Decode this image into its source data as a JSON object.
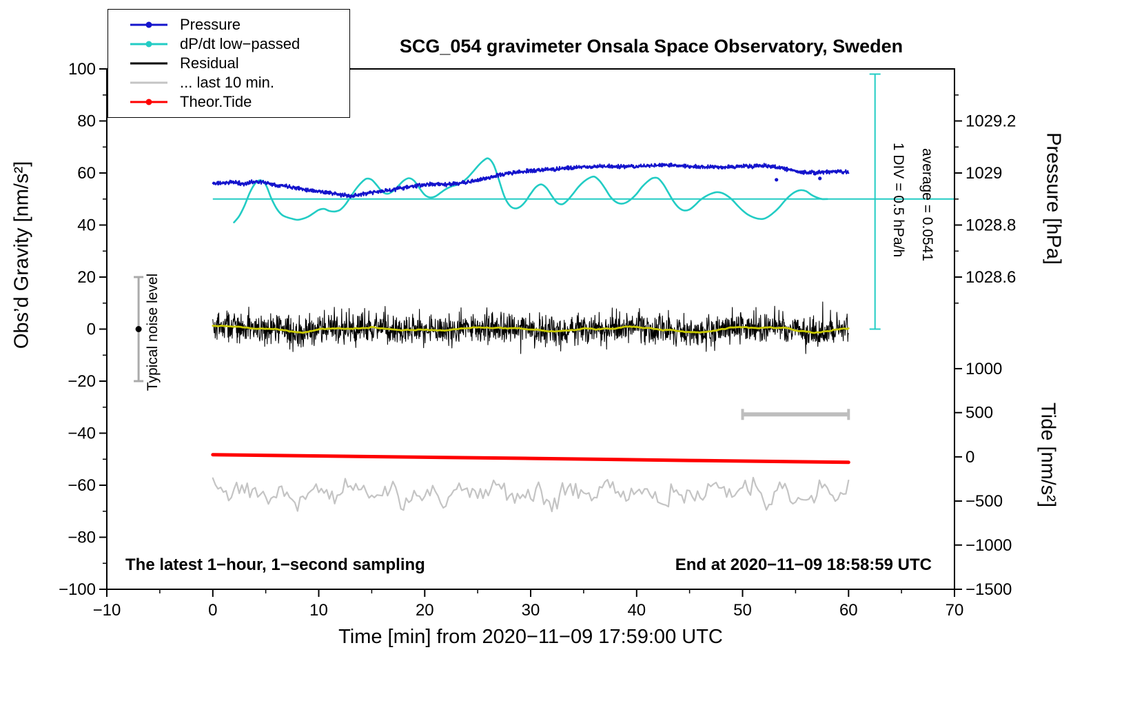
{
  "chart_data": {
    "type": "line",
    "title": "SCG_054 gravimeter Onsala Space Observatory, Sweden",
    "xlabel": "Time [min] from 2020−11−09 17:59:00 UTC",
    "x_range": [
      -10,
      70
    ],
    "x_ticks": [
      {
        "label": "−10",
        "value": -10
      },
      {
        "label": "0",
        "value": 0
      },
      {
        "label": "10",
        "value": 10
      },
      {
        "label": "20",
        "value": 20
      },
      {
        "label": "30",
        "value": 30
      },
      {
        "label": "40",
        "value": 40
      },
      {
        "label": "50",
        "value": 50
      },
      {
        "label": "60",
        "value": 60
      },
      {
        "label": "70",
        "value": 70
      }
    ],
    "x_minor_ticks": [
      -5,
      5,
      15,
      25,
      35,
      45,
      55,
      65
    ],
    "gravity_axis": {
      "label": "Obs’d Gravity [nm/s²]",
      "range": [
        -100,
        100
      ],
      "ticks": [
        {
          "label": "100",
          "value": 100
        },
        {
          "label": "80",
          "value": 80
        },
        {
          "label": "60",
          "value": 60
        },
        {
          "label": "40",
          "value": 40
        },
        {
          "label": "20",
          "value": 20
        },
        {
          "label": "0",
          "value": 0
        },
        {
          "label": "−20",
          "value": -20
        },
        {
          "label": "−40",
          "value": -40
        },
        {
          "label": "−60",
          "value": -60
        },
        {
          "label": "−80",
          "value": -80
        },
        {
          "label": "−100",
          "value": -100
        }
      ],
      "minor_ticks": [
        90,
        70,
        50,
        30,
        10,
        -10,
        -30,
        -50,
        -70,
        -90
      ]
    },
    "pressure_axis": {
      "label": "Pressure [hPa]",
      "hpa_at_gravity_zero": 1028.4,
      "hpa_per_gravity_unit": 0.01,
      "ticks": [
        {
          "label": "1029.2",
          "gravity": 80
        },
        {
          "label": "1029",
          "gravity": 60
        },
        {
          "label": "1028.8",
          "gravity": 40
        },
        {
          "label": "1028.6",
          "gravity": 20
        }
      ],
      "minor_ticks_gravity": [
        90,
        70,
        50,
        30,
        10
      ]
    },
    "tide_axis": {
      "label": "Tide [nm/s²]",
      "ticks": [
        {
          "label": "1000",
          "gravity": -15.2
        },
        {
          "label": "500",
          "gravity": -32.1
        },
        {
          "label": "0",
          "gravity": -49.1
        },
        {
          "label": "−500",
          "gravity": -66.1
        },
        {
          "label": "−1000",
          "gravity": -83.0
        },
        {
          "label": "−1500",
          "gravity": -100
        }
      ]
    },
    "legend": [
      {
        "label": "Pressure",
        "color": "#1414CC",
        "marker": true
      },
      {
        "label": "dP/dt low−passed",
        "color": "#22CCC4",
        "marker": true
      },
      {
        "label": "Residual",
        "color": "#000000",
        "marker": false
      },
      {
        "label": "... last 10 min.",
        "color": "#C4C4C4",
        "marker": false
      },
      {
        "label": "Theor.Tide",
        "color": "#FF0000",
        "marker": true
      }
    ],
    "annotations": {
      "div_scale": "1 DIV = 0.5 hPa/h",
      "average": "average = 0.0541",
      "noise_label": "Typical noise level",
      "sampling": "The latest 1−hour, 1−second sampling",
      "end_time": "End at 2020−11−09 18:58:59 UTC"
    },
    "markers": {
      "noise_bar": {
        "x": -7,
        "gravity_center": 0,
        "gravity_halfspan": 20
      },
      "scale_bar": {
        "gravity": -32.8,
        "x_start": 50,
        "x_end": 60
      },
      "div_indicator": {
        "x": 62.5,
        "gravity_top": 98,
        "gravity_bottom": 0
      },
      "dpdt_baseline": {
        "gravity": 50,
        "x_start": 0,
        "x_end": 70
      }
    },
    "series": {
      "pressure": {
        "name": "Pressure",
        "unit": "hPa",
        "color": "#1414CC",
        "noise_amplitude_gravity": 0.9,
        "outliers_gravity": [
          [
            53.2,
            57.4
          ],
          [
            57.3,
            57.9
          ]
        ],
        "points": [
          [
            0,
            1028.96
          ],
          [
            1,
            1028.962
          ],
          [
            2,
            1028.965
          ],
          [
            3,
            1028.958
          ],
          [
            4,
            1028.968
          ],
          [
            5,
            1028.963
          ],
          [
            6,
            1028.954
          ],
          [
            7,
            1028.95
          ],
          [
            8,
            1028.942
          ],
          [
            9,
            1028.935
          ],
          [
            10,
            1028.93
          ],
          [
            11,
            1028.924
          ],
          [
            12,
            1028.916
          ],
          [
            13,
            1028.912
          ],
          [
            14,
            1028.918
          ],
          [
            15,
            1028.924
          ],
          [
            16,
            1028.93
          ],
          [
            17,
            1028.936
          ],
          [
            18,
            1028.944
          ],
          [
            19,
            1028.95
          ],
          [
            20,
            1028.954
          ],
          [
            21,
            1028.958
          ],
          [
            22,
            1028.956
          ],
          [
            23,
            1028.959
          ],
          [
            24,
            1028.964
          ],
          [
            25,
            1028.972
          ],
          [
            26,
            1028.982
          ],
          [
            27,
            1028.992
          ],
          [
            28,
            1028.999
          ],
          [
            29,
            1029.004
          ],
          [
            30,
            1029.009
          ],
          [
            31,
            1029.011
          ],
          [
            32,
            1029.014
          ],
          [
            33,
            1029.018
          ],
          [
            34,
            1029.02
          ],
          [
            35,
            1029.023
          ],
          [
            36,
            1029.024
          ],
          [
            37,
            1029.027
          ],
          [
            38,
            1029.025
          ],
          [
            39,
            1029.024
          ],
          [
            40,
            1029.025
          ],
          [
            41,
            1029.028
          ],
          [
            42,
            1029.029
          ],
          [
            43,
            1029.031
          ],
          [
            44,
            1029.028
          ],
          [
            45,
            1029.025
          ],
          [
            46,
            1029.024
          ],
          [
            47,
            1029.025
          ],
          [
            48,
            1029.022
          ],
          [
            49,
            1029.024
          ],
          [
            50,
            1029.026
          ],
          [
            51,
            1029.025
          ],
          [
            52,
            1029.028
          ],
          [
            53,
            1029.024
          ],
          [
            54,
            1029.016
          ],
          [
            55,
            1029.007
          ],
          [
            56,
            1029.002
          ],
          [
            57,
            1029.001
          ],
          [
            58,
            1029.004
          ],
          [
            59,
            1029.006
          ],
          [
            60,
            1029.004
          ]
        ]
      },
      "dpdt": {
        "name": "dP/dt low−passed",
        "color": "#22CCC4",
        "baseline_gravity": 50,
        "scale_note": "1 DIV (20 nm/s²) = 0.5 hPa/h, average = 0.0541 hPa/h",
        "points_gravity": [
          [
            2,
            41
          ],
          [
            2.5,
            43.5
          ],
          [
            3,
            47.5
          ],
          [
            3.5,
            52.5
          ],
          [
            4,
            56
          ],
          [
            4.5,
            57.2
          ],
          [
            5,
            55.5
          ],
          [
            5.5,
            50.5
          ],
          [
            6,
            46.5
          ],
          [
            6.5,
            44
          ],
          [
            7,
            43
          ],
          [
            7.5,
            42.4
          ],
          [
            8,
            42
          ],
          [
            8.5,
            42.4
          ],
          [
            9,
            43.2
          ],
          [
            9.5,
            44.5
          ],
          [
            10,
            45.8
          ],
          [
            10.5,
            46.2
          ],
          [
            11,
            45.4
          ],
          [
            11.5,
            45.2
          ],
          [
            12,
            45.8
          ],
          [
            12.5,
            47.8
          ],
          [
            13,
            50.8
          ],
          [
            13.5,
            53.8
          ],
          [
            14,
            56.2
          ],
          [
            14.5,
            57.8
          ],
          [
            15,
            57.4
          ],
          [
            15.5,
            55.2
          ],
          [
            16,
            52.8
          ],
          [
            16.5,
            52
          ],
          [
            17,
            53
          ],
          [
            17.5,
            55
          ],
          [
            18,
            57
          ],
          [
            18.5,
            58
          ],
          [
            19,
            57
          ],
          [
            19.5,
            54.2
          ],
          [
            20,
            51.6
          ],
          [
            20.5,
            50.6
          ],
          [
            21,
            51
          ],
          [
            21.5,
            52.4
          ],
          [
            22,
            53.8
          ],
          [
            22.5,
            54.8
          ],
          [
            23,
            55.4
          ],
          [
            23.5,
            56.4
          ],
          [
            24,
            58
          ],
          [
            24.5,
            60.2
          ],
          [
            25,
            62.6
          ],
          [
            25.5,
            64.6
          ],
          [
            26,
            65.6
          ],
          [
            26.5,
            63.2
          ],
          [
            27,
            57.4
          ],
          [
            27.5,
            51.2
          ],
          [
            28,
            47.6
          ],
          [
            28.5,
            46.4
          ],
          [
            29,
            47
          ],
          [
            29.5,
            49
          ],
          [
            30,
            52
          ],
          [
            30.5,
            54.6
          ],
          [
            31,
            55.6
          ],
          [
            31.5,
            54.2
          ],
          [
            32,
            51.2
          ],
          [
            32.5,
            48.6
          ],
          [
            33,
            48
          ],
          [
            33.5,
            49.6
          ],
          [
            34,
            52
          ],
          [
            34.5,
            54.6
          ],
          [
            35,
            56.6
          ],
          [
            35.5,
            58
          ],
          [
            36,
            58.6
          ],
          [
            36.5,
            57
          ],
          [
            37,
            54.2
          ],
          [
            37.5,
            51
          ],
          [
            38,
            49
          ],
          [
            38.5,
            48.2
          ],
          [
            39,
            48.6
          ],
          [
            39.5,
            50
          ],
          [
            40,
            52
          ],
          [
            40.5,
            54.6
          ],
          [
            41,
            56.6
          ],
          [
            41.5,
            58
          ],
          [
            42,
            58
          ],
          [
            42.5,
            55.8
          ],
          [
            43,
            52.4
          ],
          [
            43.5,
            49
          ],
          [
            44,
            46.6
          ],
          [
            44.5,
            45.6
          ],
          [
            45,
            46
          ],
          [
            45.5,
            47.6
          ],
          [
            46,
            49.6
          ],
          [
            46.5,
            51
          ],
          [
            47,
            52
          ],
          [
            47.5,
            52.6
          ],
          [
            48,
            52.4
          ],
          [
            48.5,
            51.4
          ],
          [
            49,
            49.8
          ],
          [
            49.5,
            47.6
          ],
          [
            50,
            45.6
          ],
          [
            50.5,
            44
          ],
          [
            51,
            43
          ],
          [
            51.5,
            42.4
          ],
          [
            52,
            42.4
          ],
          [
            52.5,
            43.4
          ],
          [
            53,
            45
          ],
          [
            53.5,
            47
          ],
          [
            54,
            49.4
          ],
          [
            54.5,
            51.4
          ],
          [
            55,
            52.8
          ],
          [
            55.5,
            53.4
          ],
          [
            56,
            53
          ],
          [
            56.5,
            51.6
          ],
          [
            57,
            50.6
          ],
          [
            57.5,
            50
          ],
          [
            58,
            50
          ]
        ]
      },
      "residual": {
        "name": "Residual",
        "color": "#000000",
        "x_range": [
          0,
          60
        ],
        "sampling_per_min": 30,
        "std_gravity": 3,
        "seed": 42
      },
      "residual_lowpass": {
        "color": "#C8C800",
        "window_samples": 41
      },
      "last10": {
        "name": "... last 10 min.",
        "color": "#C4C4C4",
        "x_range": [
          0,
          60
        ],
        "baseline_gravity": -63,
        "amplitude_gravity": 6,
        "seed": 5
      },
      "tide": {
        "name": "Theor.Tide",
        "color": "#FF0000",
        "width": 5,
        "points_gravity": [
          [
            0,
            -48.3
          ],
          [
            15,
            -49.0
          ],
          [
            30,
            -49.7
          ],
          [
            45,
            -50.5
          ],
          [
            60,
            -51.2
          ]
        ]
      }
    }
  }
}
